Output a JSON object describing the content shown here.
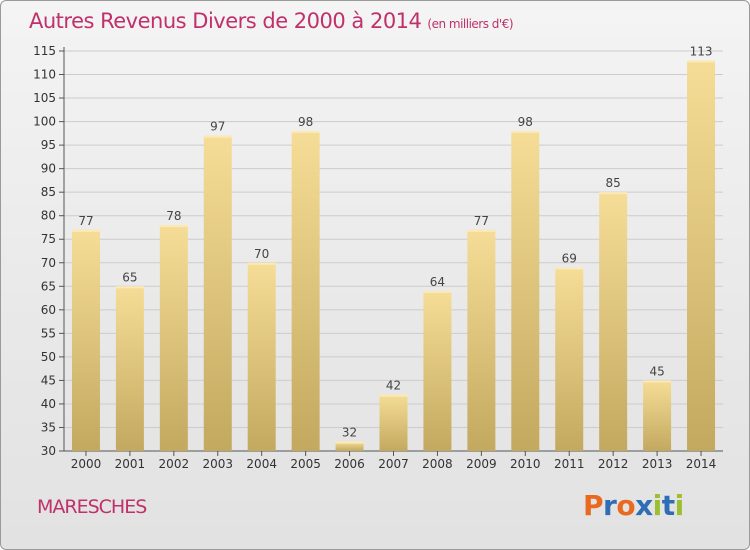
{
  "title": "Autres Revenus Divers de 2000 à 2014",
  "unit": "(en milliers d'€)",
  "location": "MARESCHES",
  "brand": "Proxiti",
  "colors": {
    "title": "#c0306a",
    "bar_top": "#f6dd97",
    "bar_bottom": "#c3a95f",
    "grid": "#cccccc",
    "brand_letters": [
      "#e8691f",
      "#2f6db5",
      "#e8691f",
      "#2f6db5",
      "#9bbf2e",
      "#2f6db5",
      "#9bbf2e"
    ]
  },
  "chart_data": {
    "type": "bar",
    "title": "Autres Revenus Divers de 2000 à 2014",
    "subtitle": "(en milliers d'€)",
    "categories": [
      "2000",
      "2001",
      "2002",
      "2003",
      "2004",
      "2005",
      "2006",
      "2007",
      "2008",
      "2009",
      "2010",
      "2011",
      "2012",
      "2013",
      "2014"
    ],
    "values": [
      77,
      65,
      78,
      97,
      70,
      98,
      32,
      42,
      64,
      77,
      98,
      69,
      85,
      45,
      113
    ],
    "ylim": [
      30,
      115
    ],
    "yticks": [
      30,
      35,
      40,
      45,
      50,
      55,
      60,
      65,
      70,
      75,
      80,
      85,
      90,
      95,
      100,
      105,
      110,
      115
    ],
    "xlabel": "",
    "ylabel": "",
    "grid": true,
    "legend": "none"
  }
}
